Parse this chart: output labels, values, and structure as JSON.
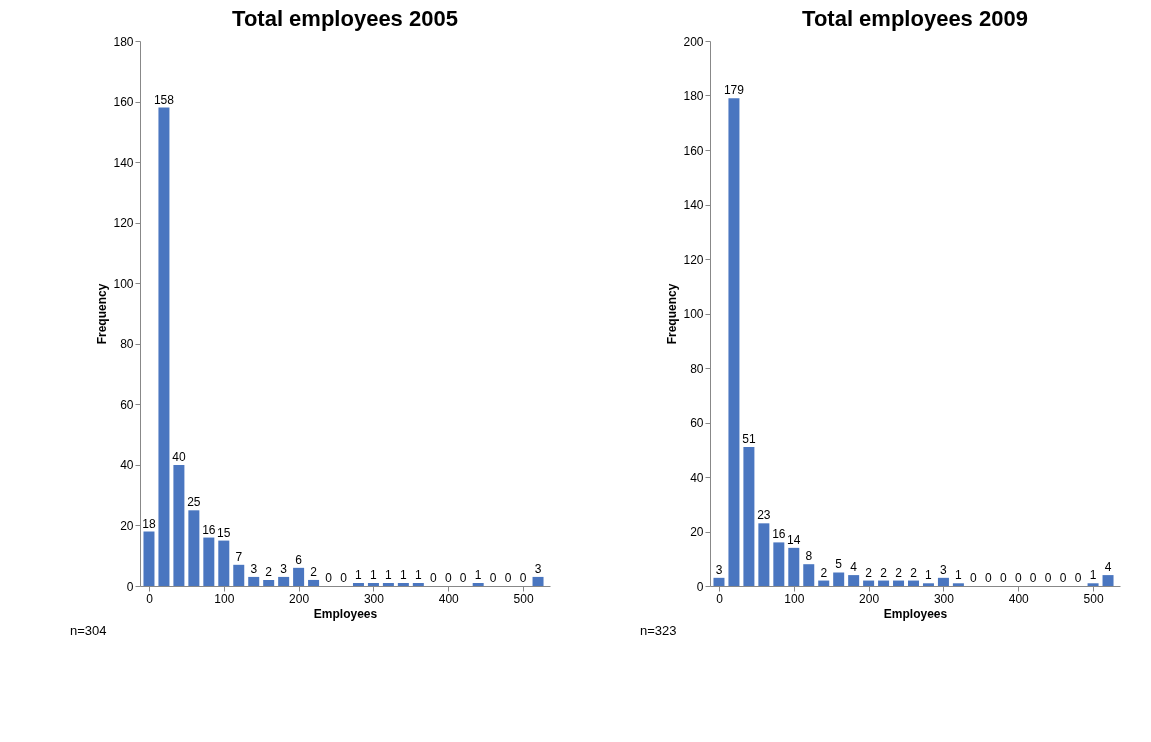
{
  "chart_data": [
    {
      "type": "bar",
      "title": "Total employees 2005",
      "xlabel": "Employees",
      "ylabel": "Frequency",
      "color": "#4a76c0",
      "x": [
        0,
        20,
        40,
        60,
        80,
        100,
        120,
        140,
        160,
        180,
        200,
        220,
        240,
        260,
        280,
        300,
        320,
        340,
        360,
        380,
        400,
        420,
        440,
        460,
        480,
        500,
        520
      ],
      "values": [
        18,
        158,
        40,
        25,
        16,
        15,
        7,
        3,
        2,
        3,
        6,
        2,
        0,
        0,
        1,
        1,
        1,
        1,
        1,
        0,
        0,
        0,
        1,
        0,
        0,
        0,
        3
      ],
      "xlim": [
        -12,
        536
      ],
      "xticks": [
        0,
        100,
        200,
        300,
        400,
        500
      ],
      "ylim": [
        0,
        180
      ],
      "yticks": [
        0,
        20,
        40,
        60,
        80,
        100,
        120,
        140,
        160,
        180
      ],
      "data_labels": true,
      "grid": false,
      "annotations": [
        "n=304"
      ]
    },
    {
      "type": "bar",
      "title": "Total employees 2009",
      "xlabel": "Employees",
      "ylabel": "Frequency",
      "color": "#4a76c0",
      "x": [
        0,
        20,
        40,
        60,
        80,
        100,
        120,
        140,
        160,
        180,
        200,
        220,
        240,
        260,
        280,
        300,
        320,
        340,
        360,
        380,
        400,
        420,
        440,
        460,
        480,
        500,
        520
      ],
      "values": [
        3,
        179,
        51,
        23,
        16,
        14,
        8,
        2,
        5,
        4,
        2,
        2,
        2,
        2,
        1,
        3,
        1,
        0,
        0,
        0,
        0,
        0,
        0,
        0,
        0,
        1,
        4
      ],
      "xlim": [
        -12,
        536
      ],
      "xticks": [
        0,
        100,
        200,
        300,
        400,
        500
      ],
      "ylim": [
        0,
        200
      ],
      "yticks": [
        0,
        20,
        40,
        60,
        80,
        100,
        120,
        140,
        160,
        180,
        200
      ],
      "data_labels": true,
      "grid": false,
      "annotations": [
        "n=323"
      ]
    }
  ]
}
